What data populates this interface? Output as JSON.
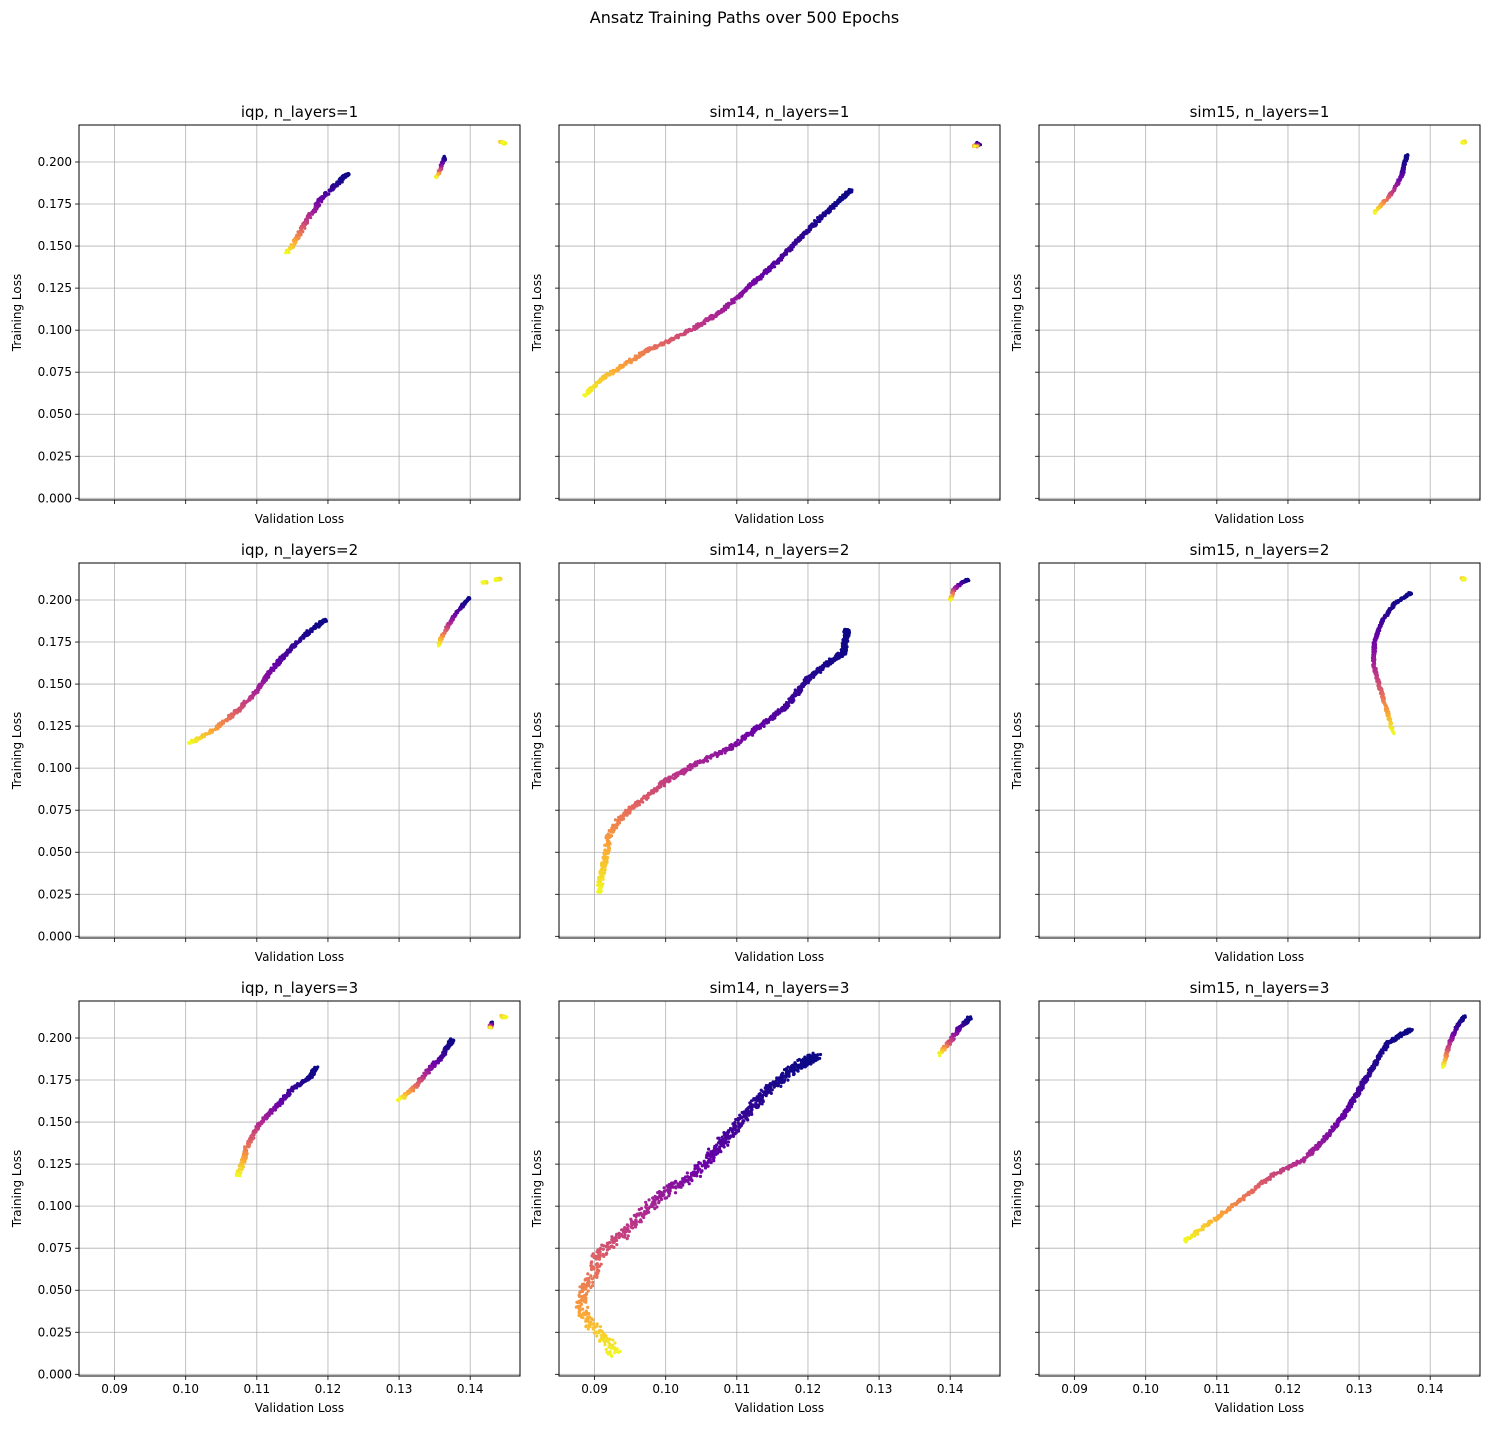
{
  "figure": {
    "suptitle": "Ansatz Training Paths over 500 Epochs",
    "colormap": "plasma",
    "colormap_stops": [
      "#0d0887",
      "#6a00a8",
      "#b12a90",
      "#e16462",
      "#fca636",
      "#f0f921"
    ]
  },
  "chart_data": {
    "type": "scatter",
    "color_encoding": "epoch (0 to 500), plasma colormap: dark blue = early, yellow = late",
    "shared_x": true,
    "shared_y": true,
    "xlabel": "Validation Loss",
    "ylabel": "Training Loss",
    "xlim": [
      0.085,
      0.147
    ],
    "ylim": [
      -0.001,
      0.222
    ],
    "xticks": [
      0.09,
      0.1,
      0.11,
      0.12,
      0.13,
      0.14
    ],
    "xtick_labels": [
      "0.09",
      "0.10",
      "0.11",
      "0.12",
      "0.13",
      "0.14"
    ],
    "yticks": [
      0.0,
      0.025,
      0.05,
      0.075,
      0.1,
      0.125,
      0.15,
      0.175,
      0.2
    ],
    "ytick_labels": [
      "0.000",
      "0.025",
      "0.050",
      "0.075",
      "0.100",
      "0.125",
      "0.150",
      "0.175",
      "0.200"
    ],
    "grid": true,
    "panels": [
      {
        "title": "iqp, n_layers=1",
        "paths": [
          {
            "points": [
              [
                0.1228,
                0.193
              ],
              [
                0.121,
                0.186
              ],
              [
                0.119,
                0.178
              ],
              [
                0.117,
                0.165
              ],
              [
                0.1158,
                0.156
              ],
              [
                0.1148,
                0.1485
              ],
              [
                0.1142,
                0.146
              ]
            ],
            "scatter": 0.0003
          },
          {
            "points": [
              [
                0.1365,
                0.203
              ],
              [
                0.136,
                0.198
              ],
              [
                0.1356,
                0.194
              ],
              [
                0.1353,
                0.191
              ]
            ],
            "scatter": 0.0002
          },
          {
            "points": [
              [
                0.1442,
                0.212
              ],
              [
                0.145,
                0.211
              ],
              [
                0.1446,
                0.2115
              ]
            ],
            "scatter": 0.0002,
            "late": true
          }
        ]
      },
      {
        "title": "sim14, n_layers=1",
        "paths": [
          {
            "points": [
              [
                0.126,
                0.183
              ],
              [
                0.122,
                0.168
              ],
              [
                0.119,
                0.155
              ],
              [
                0.115,
                0.138
              ],
              [
                0.111,
                0.123
              ],
              [
                0.108,
                0.112
              ],
              [
                0.104,
                0.101
              ],
              [
                0.1,
                0.093
              ],
              [
                0.097,
                0.087
              ],
              [
                0.094,
                0.079
              ],
              [
                0.091,
                0.071
              ],
              [
                0.0885,
                0.061
              ]
            ],
            "scatter": 0.0003
          },
          {
            "points": [
              [
                0.144,
                0.211
              ],
              [
                0.1435,
                0.209
              ]
            ],
            "scatter": 0.0003
          }
        ]
      },
      {
        "title": "sim15, n_layers=1",
        "paths": [
          {
            "points": [
              [
                0.1367,
                0.204
              ],
              [
                0.136,
                0.192
              ],
              [
                0.1348,
                0.183
              ],
              [
                0.1335,
                0.176
              ],
              [
                0.1322,
                0.17
              ]
            ],
            "scatter": 0.0002
          },
          {
            "points": [
              [
                0.1448,
                0.212
              ],
              [
                0.1446,
                0.2115
              ]
            ],
            "scatter": 0.0002,
            "late": true
          }
        ]
      },
      {
        "title": "iqp, n_layers=2",
        "paths": [
          {
            "points": [
              [
                0.1195,
                0.188
              ],
              [
                0.117,
                0.18
              ],
              [
                0.114,
                0.168
              ],
              [
                0.112,
                0.158
              ],
              [
                0.11,
                0.146
              ],
              [
                0.107,
                0.133
              ],
              [
                0.104,
                0.123
              ],
              [
                0.102,
                0.118
              ],
              [
                0.1005,
                0.115
              ]
            ],
            "scatter": 0.0003
          },
          {
            "points": [
              [
                0.1398,
                0.201
              ],
              [
                0.138,
                0.192
              ],
              [
                0.1368,
                0.184
              ],
              [
                0.136,
                0.178
              ],
              [
                0.1355,
                0.173
              ]
            ],
            "scatter": 0.0002
          },
          {
            "points": [
              [
                0.1442,
                0.2125
              ],
              [
                0.1435,
                0.212
              ]
            ],
            "scatter": 0.0002,
            "late": true
          },
          {
            "points": [
              [
                0.1422,
                0.2105
              ],
              [
                0.1418,
                0.2105
              ]
            ],
            "scatter": 0.0002,
            "late": true
          }
        ]
      },
      {
        "title": "sim14, n_layers=2",
        "paths": [
          {
            "points": [
              [
                0.1255,
                0.182
              ],
              [
                0.125,
                0.169
              ],
              [
                0.123,
                0.163
              ],
              [
                0.12,
                0.153
              ],
              [
                0.117,
                0.137
              ],
              [
                0.112,
                0.121
              ],
              [
                0.109,
                0.112
              ],
              [
                0.104,
                0.102
              ],
              [
                0.1,
                0.092
              ],
              [
                0.096,
                0.079
              ],
              [
                0.0935,
                0.07
              ],
              [
                0.092,
                0.06
              ],
              [
                0.0915,
                0.046
              ],
              [
                0.091,
                0.035
              ],
              [
                0.0905,
                0.026
              ]
            ],
            "scatter": 0.0004
          },
          {
            "points": [
              [
                0.1425,
                0.212
              ],
              [
                0.1415,
                0.21
              ],
              [
                0.1405,
                0.206
              ],
              [
                0.14,
                0.2
              ]
            ],
            "scatter": 0.0002
          }
        ]
      },
      {
        "title": "sim15, n_layers=2",
        "paths": [
          {
            "points": [
              [
                0.1372,
                0.204
              ],
              [
                0.135,
                0.198
              ],
              [
                0.1333,
                0.188
              ],
              [
                0.1322,
                0.176
              ],
              [
                0.132,
                0.162
              ],
              [
                0.133,
                0.147
              ],
              [
                0.1338,
                0.136
              ],
              [
                0.1343,
                0.128
              ],
              [
                0.1348,
                0.121
              ]
            ],
            "scatter": 0.0002
          },
          {
            "points": [
              [
                0.1445,
                0.213
              ],
              [
                0.1448,
                0.212
              ]
            ],
            "scatter": 0.0002,
            "late": true
          }
        ]
      },
      {
        "title": "iqp, n_layers=3",
        "paths": [
          {
            "points": [
              [
                0.1183,
                0.182
              ],
              [
                0.1175,
                0.177
              ],
              [
                0.115,
                0.17
              ],
              [
                0.113,
                0.16
              ],
              [
                0.111,
                0.152
              ],
              [
                0.1095,
                0.143
              ],
              [
                0.1085,
                0.134
              ],
              [
                0.108,
                0.125
              ],
              [
                0.1073,
                0.118
              ]
            ],
            "scatter": 0.0003
          },
          {
            "points": [
              [
                0.1375,
                0.199
              ],
              [
                0.136,
                0.189
              ],
              [
                0.134,
                0.18
              ],
              [
                0.132,
                0.17
              ],
              [
                0.13,
                0.163
              ]
            ],
            "scatter": 0.0003
          },
          {
            "points": [
              [
                0.143,
                0.209
              ],
              [
                0.1428,
                0.206
              ]
            ],
            "scatter": 0.0002
          },
          {
            "points": [
              [
                0.1444,
                0.213
              ],
              [
                0.145,
                0.212
              ]
            ],
            "scatter": 0.0002,
            "late": true
          }
        ]
      },
      {
        "title": "sim14, n_layers=3",
        "paths": [
          {
            "points": [
              [
                0.121,
                0.189
              ],
              [
                0.118,
                0.182
              ],
              [
                0.114,
                0.167
              ],
              [
                0.11,
                0.148
              ],
              [
                0.107,
                0.133
              ],
              [
                0.104,
                0.119
              ],
              [
                0.1,
                0.108
              ],
              [
                0.097,
                0.097
              ],
              [
                0.094,
                0.083
              ],
              [
                0.0905,
                0.071
              ],
              [
                0.0895,
                0.058
              ],
              [
                0.088,
                0.045
              ],
              [
                0.0885,
                0.034
              ],
              [
                0.0905,
                0.025
              ],
              [
                0.092,
                0.018
              ],
              [
                0.093,
                0.011
              ]
            ],
            "scatter": 0.0008
          },
          {
            "points": [
              [
                0.1428,
                0.212
              ],
              [
                0.1412,
                0.205
              ],
              [
                0.1398,
                0.197
              ],
              [
                0.1385,
                0.19
              ]
            ],
            "scatter": 0.0003
          }
        ]
      },
      {
        "title": "sim15, n_layers=3",
        "paths": [
          {
            "points": [
              [
                0.1372,
                0.205
              ],
              [
                0.134,
                0.197
              ],
              [
                0.131,
                0.176
              ],
              [
                0.128,
                0.155
              ],
              [
                0.125,
                0.139
              ],
              [
                0.122,
                0.127
              ],
              [
                0.118,
                0.119
              ],
              [
                0.114,
                0.106
              ],
              [
                0.11,
                0.093
              ],
              [
                0.107,
                0.084
              ],
              [
                0.1055,
                0.079
              ]
            ],
            "scatter": 0.0003
          },
          {
            "points": [
              [
                0.1448,
                0.213
              ],
              [
                0.1435,
                0.205
              ],
              [
                0.1425,
                0.194
              ],
              [
                0.1418,
                0.183
              ]
            ],
            "scatter": 0.0002
          }
        ]
      }
    ]
  }
}
